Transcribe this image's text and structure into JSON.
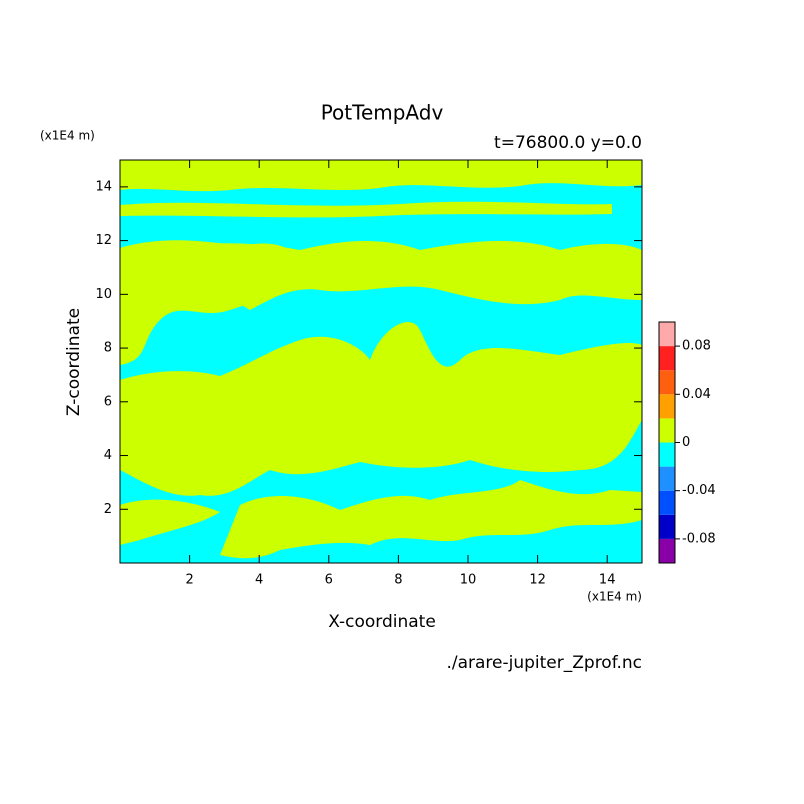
{
  "chart_data": {
    "type": "contour",
    "title": "PotTempAdv",
    "subtitle": "t=76800.0 y=0.0",
    "x_label": "X-coordinate",
    "y_label": "Z-coordinate",
    "x_unit": "(x1E4 m)",
    "y_unit": "(x1E4 m)",
    "source": "./arare-jupiter_Zprof.nc",
    "xlim": [
      0,
      15
    ],
    "xticks": [
      2,
      4,
      6,
      8,
      10,
      12,
      14
    ],
    "ylim": [
      0,
      15
    ],
    "yticks": [
      2,
      4,
      6,
      8,
      10,
      12,
      14
    ],
    "colorbar": {
      "levels": [
        -0.1,
        -0.08,
        -0.06,
        -0.04,
        -0.02,
        0,
        0.02,
        0.04,
        0.06,
        0.08,
        0.1
      ],
      "colors": [
        "#8a00a8",
        "#0000c8",
        "#0050ff",
        "#1e90ff",
        "#00ffff",
        "#ccff00",
        "#ffa000",
        "#ff6010",
        "#ff2020",
        "#ffaaaa"
      ],
      "ticks": [
        -0.08,
        -0.04,
        0,
        0.04,
        0.08
      ]
    }
  }
}
